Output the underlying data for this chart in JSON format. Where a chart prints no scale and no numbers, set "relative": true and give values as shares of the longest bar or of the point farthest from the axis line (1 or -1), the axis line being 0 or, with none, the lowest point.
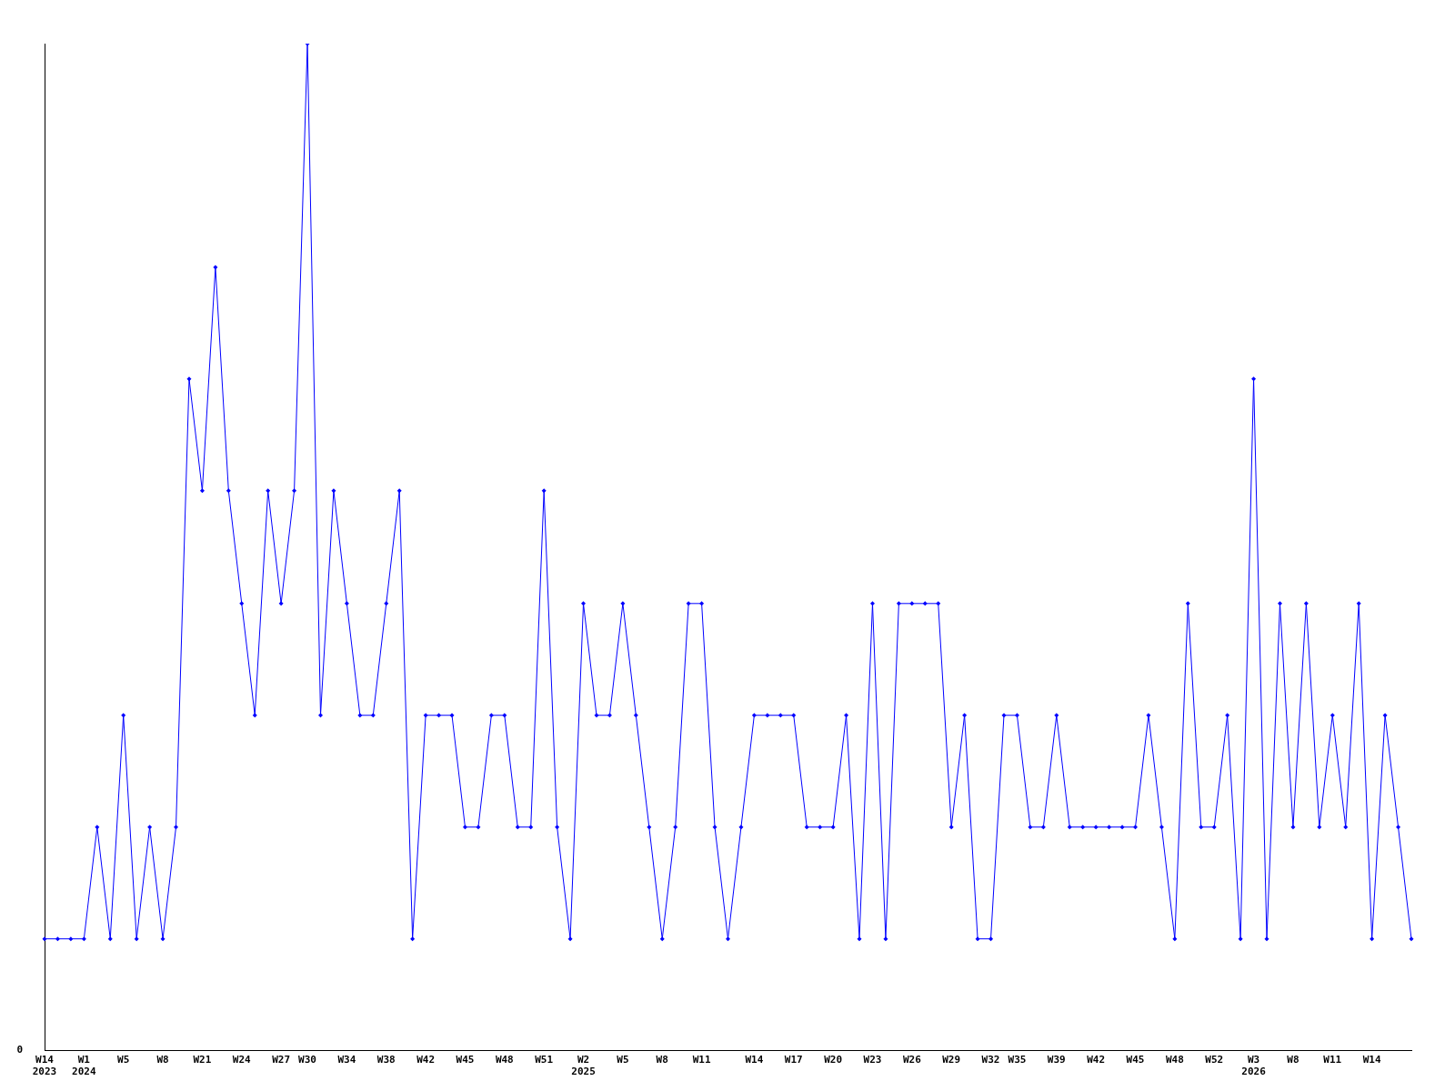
{
  "chart_data": {
    "type": "line",
    "relative": true,
    "marker": "diamond",
    "line_style": "solid",
    "grid": false,
    "legend": false,
    "categories": [
      "W14\n2023",
      null,
      null,
      "W1\n2024",
      null,
      null,
      "W5",
      null,
      null,
      "W8",
      null,
      null,
      "W21",
      null,
      null,
      "W24",
      null,
      null,
      "W27",
      null,
      "W30",
      null,
      null,
      "W34",
      null,
      null,
      "W38",
      null,
      null,
      "W42",
      null,
      null,
      "W45",
      null,
      null,
      "W48",
      null,
      null,
      "W51",
      null,
      null,
      "W2\n2025",
      null,
      null,
      "W5",
      null,
      null,
      "W8",
      null,
      null,
      "W11",
      null,
      null,
      null,
      "W14",
      null,
      null,
      "W17",
      null,
      null,
      "W20",
      null,
      null,
      "W23",
      null,
      null,
      "W26",
      null,
      null,
      "W29",
      null,
      null,
      "W32",
      null,
      "W35",
      null,
      null,
      "W39",
      null,
      null,
      "W42",
      null,
      null,
      "W45",
      null,
      null,
      "W48",
      null,
      null,
      "W52",
      null,
      null,
      "W3\n2026",
      null,
      null,
      "W8",
      null,
      null,
      "W11",
      null,
      null,
      "W14",
      null,
      null,
      null
    ],
    "series": [
      {
        "color": "#0000ff",
        "values": [
          0.111,
          0.111,
          0.111,
          0.111,
          0.222,
          0.111,
          0.333,
          0.111,
          0.222,
          0.111,
          0.222,
          0.667,
          0.556,
          0.778,
          0.556,
          0.444,
          0.333,
          0.556,
          0.444,
          0.556,
          1,
          0.333,
          0.556,
          0.444,
          0.333,
          0.333,
          0.444,
          0.556,
          0.111,
          0.333,
          0.333,
          0.333,
          0.222,
          0.222,
          0.333,
          0.333,
          0.222,
          0.222,
          0.556,
          0.222,
          0.111,
          0.444,
          0.333,
          0.333,
          0.444,
          0.333,
          0.222,
          0.111,
          0.222,
          0.444,
          0.444,
          0.222,
          0.111,
          0.222,
          0.333,
          0.333,
          0.333,
          0.333,
          0.222,
          0.222,
          0.222,
          0.333,
          0.111,
          0.444,
          0.111,
          0.444,
          0.444,
          0.444,
          0.444,
          0.222,
          0.333,
          0.111,
          0.111,
          0.333,
          0.333,
          0.222,
          0.222,
          0.333,
          0.222,
          0.222,
          0.222,
          0.222,
          0.222,
          0.222,
          0.333,
          0.222,
          0.111,
          0.444,
          0.222,
          0.222,
          0.333,
          0.111,
          0.667,
          0.111,
          0.444,
          0.222,
          0.444,
          0.222,
          0.333,
          0.222,
          0.444,
          0.111,
          0.333,
          0.222,
          0.111
        ]
      }
    ],
    "annotations": [
      "0"
    ]
  }
}
